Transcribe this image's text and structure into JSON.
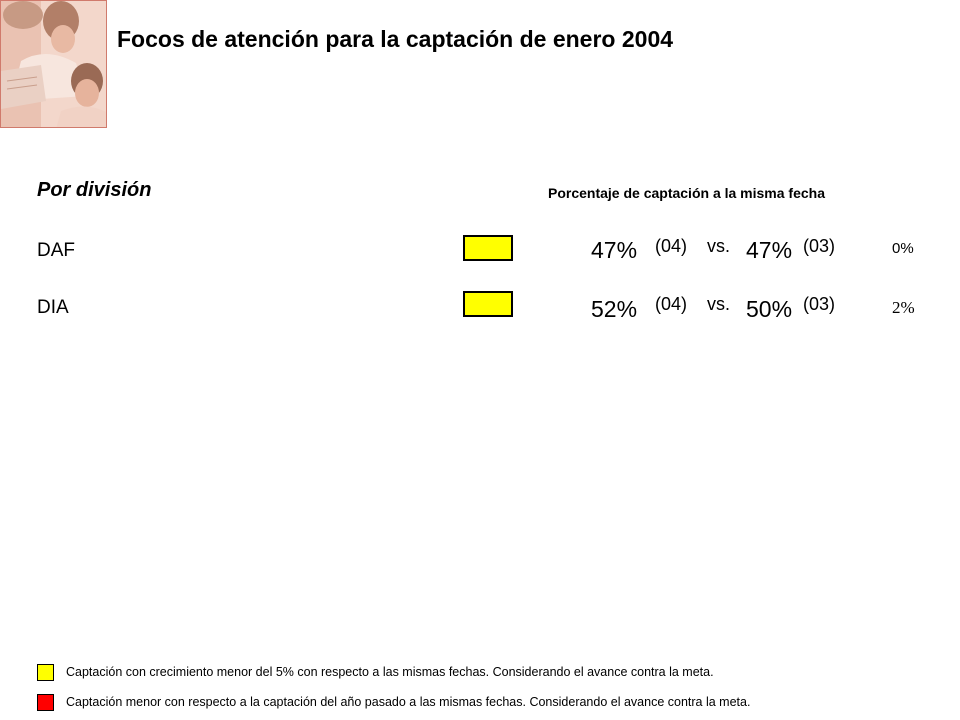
{
  "title": "Focos de atención para la captación de enero 2004",
  "section_title": "Por división",
  "column_header": "Porcentaje de captación a la misma fecha",
  "colors": {
    "yellow": "#ffff00",
    "red": "#ff0000"
  },
  "rows": [
    {
      "label": "DAF",
      "status": "yellow",
      "current_pct": "47%",
      "current_year": "(04)",
      "vs": "vs.",
      "previous_pct": "47%",
      "previous_year": "(03)",
      "difference": "0%"
    },
    {
      "label": "DIA",
      "status": "yellow",
      "current_pct": "52%",
      "current_year": "(04)",
      "vs": "vs.",
      "previous_pct": "50%",
      "previous_year": "(03)",
      "difference": "2%"
    }
  ],
  "legend": [
    {
      "color": "yellow",
      "text": "Captación con crecimiento menor del 5% con respecto a las mismas fechas. Considerando el avance contra la meta."
    },
    {
      "color": "red",
      "text": "Captación menor con respecto a la captación del año pasado a las mismas fechas. Considerando el avance contra la meta."
    }
  ]
}
